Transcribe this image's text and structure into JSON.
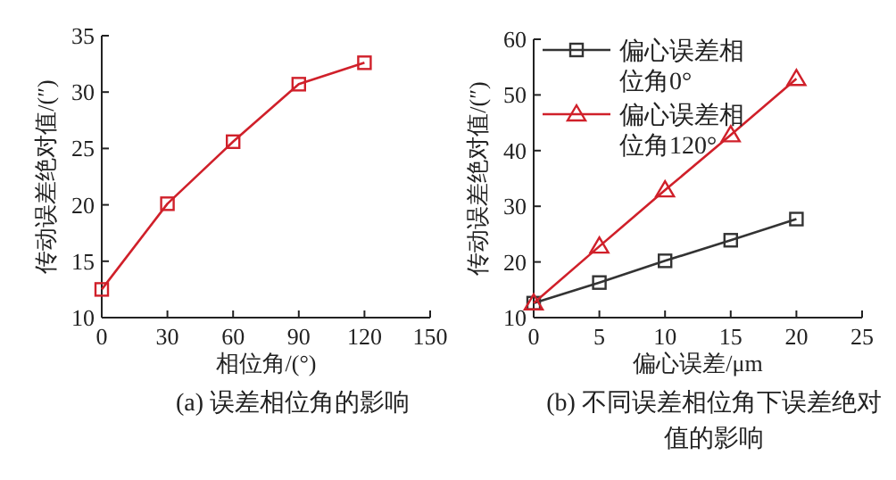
{
  "chart_data": [
    {
      "type": "line",
      "title": "(a) 误差相位角的影响",
      "xlabel": "相位角/(°)",
      "ylabel": "传动误差绝对值/(″)",
      "x": [
        0,
        30,
        60,
        90,
        120
      ],
      "xlim": [
        0,
        150
      ],
      "xticks": [
        0,
        30,
        60,
        90,
        120,
        150
      ],
      "ylim": [
        10,
        35
      ],
      "yticks": [
        10,
        15,
        20,
        25,
        30,
        35
      ],
      "grid": false,
      "legend": false,
      "marker": "square",
      "line_style": "solid",
      "series": [
        {
          "color": "#d0202a",
          "values": [
            12.5,
            20.1,
            25.6,
            30.7,
            32.6
          ]
        }
      ]
    },
    {
      "type": "line",
      "title": "(b) 不同误差相位角下误差绝对值的影响",
      "xlabel": "偏心误差/μm",
      "ylabel": "传动误差绝对值/(″)",
      "x": [
        0,
        5,
        10,
        15,
        20
      ],
      "xlim": [
        0,
        25
      ],
      "xticks": [
        0,
        5,
        10,
        15,
        20,
        25
      ],
      "ylim": [
        10,
        60
      ],
      "yticks": [
        10,
        20,
        30,
        40,
        50,
        60
      ],
      "grid": false,
      "legend": "top left",
      "line_style": "solid",
      "series": [
        {
          "name": "偏心误差相位角0°",
          "color": "#333333",
          "marker": "square",
          "values": [
            12.6,
            16.3,
            20.2,
            23.9,
            27.7
          ]
        },
        {
          "name": "偏心误差相位角120°",
          "color": "#d0202a",
          "marker": "triangle",
          "values": [
            12.6,
            22.8,
            32.9,
            42.8,
            52.9
          ]
        }
      ]
    }
  ]
}
